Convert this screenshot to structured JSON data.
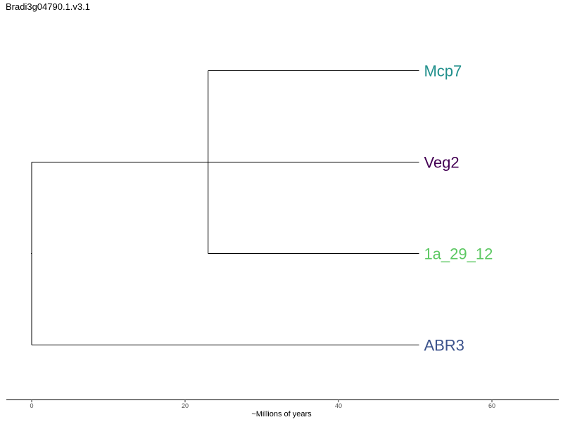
{
  "title": "Bradi3g04790.1.v3.1",
  "tree": {
    "leaves": [
      {
        "name": "Mcp7",
        "color": "#21908C"
      },
      {
        "name": "Veg2",
        "color": "#440154"
      },
      {
        "name": "1a_29_12",
        "color": "#5DC863"
      },
      {
        "name": "ABR3",
        "color": "#3B528B"
      }
    ],
    "node_ages": {
      "root": 0,
      "inner": 23,
      "tips": 50.5
    }
  },
  "axis": {
    "title": "~Millions of years",
    "ticks": [
      "0",
      "20",
      "40",
      "60"
    ]
  }
}
